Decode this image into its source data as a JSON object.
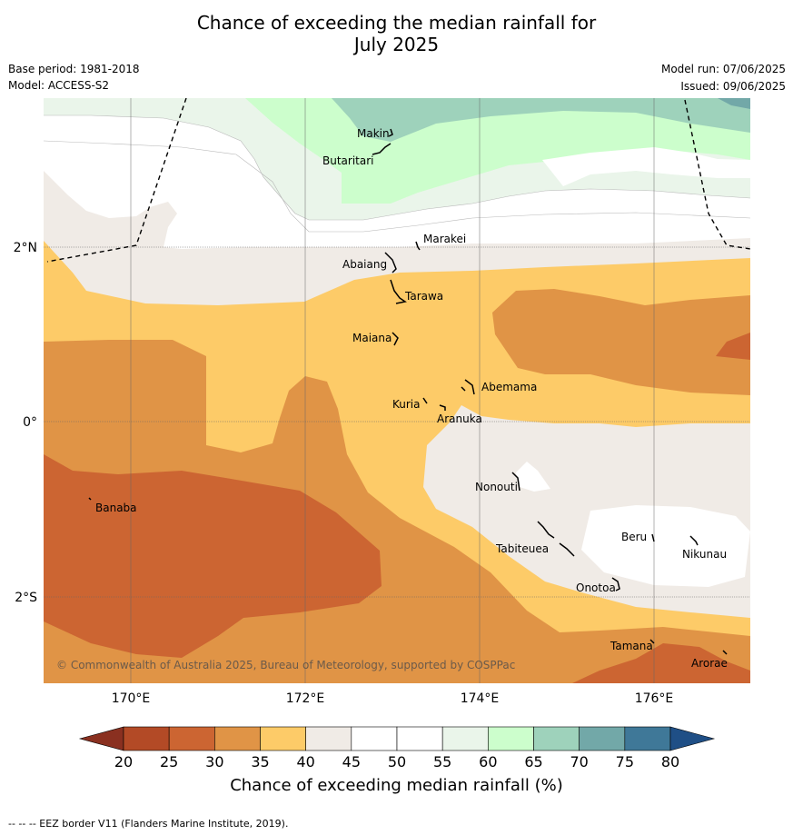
{
  "header": {
    "title_line1": "Chance of exceeding the median rainfall for",
    "title_line2": "July 2025",
    "base_period": "Base period: 1981-2018",
    "model": "Model: ACCESS-S2",
    "model_run": "Model run: 07/06/2025",
    "issued": "Issued: 09/06/2025"
  },
  "map": {
    "lon_labels": [
      "170°E",
      "172°E",
      "174°E",
      "176°E"
    ],
    "lat_labels": [
      "2°N",
      "0°",
      "2°S"
    ],
    "copyright": "© Commonwealth of Australia 2025, Bureau of Meteorology, supported by COSPPac",
    "places": [
      {
        "name": "Makin"
      },
      {
        "name": "Butaritari"
      },
      {
        "name": "Marakei"
      },
      {
        "name": "Abaiang"
      },
      {
        "name": "Tarawa"
      },
      {
        "name": "Maiana"
      },
      {
        "name": "Abemama"
      },
      {
        "name": "Kuria"
      },
      {
        "name": "Aranuka"
      },
      {
        "name": "Banaba"
      },
      {
        "name": "Nonouti"
      },
      {
        "name": "Beru"
      },
      {
        "name": "Tabiteuea"
      },
      {
        "name": "Nikunau"
      },
      {
        "name": "Onotoa"
      },
      {
        "name": "Tamana"
      },
      {
        "name": "Arorae"
      }
    ]
  },
  "colorbar": {
    "ticks": [
      "20",
      "25",
      "30",
      "35",
      "40",
      "45",
      "50",
      "55",
      "60",
      "65",
      "70",
      "75",
      "80"
    ],
    "colors": [
      "#b34a26",
      "#cc6532",
      "#e09446",
      "#fdcb68",
      "#f0ebe6",
      "#ffffff",
      "#ffffff",
      "#eaf5ea",
      "#ccfecc",
      "#9ed2bb",
      "#72a8a8",
      "#3f7898"
    ],
    "under_color": "#8a3020",
    "over_color": "#1f4f86",
    "title": "Chance of exceeding median rainfall (%)"
  },
  "footnote": "--  --  -- EEZ border V11 (Flanders Marine Institute, 2019)."
}
